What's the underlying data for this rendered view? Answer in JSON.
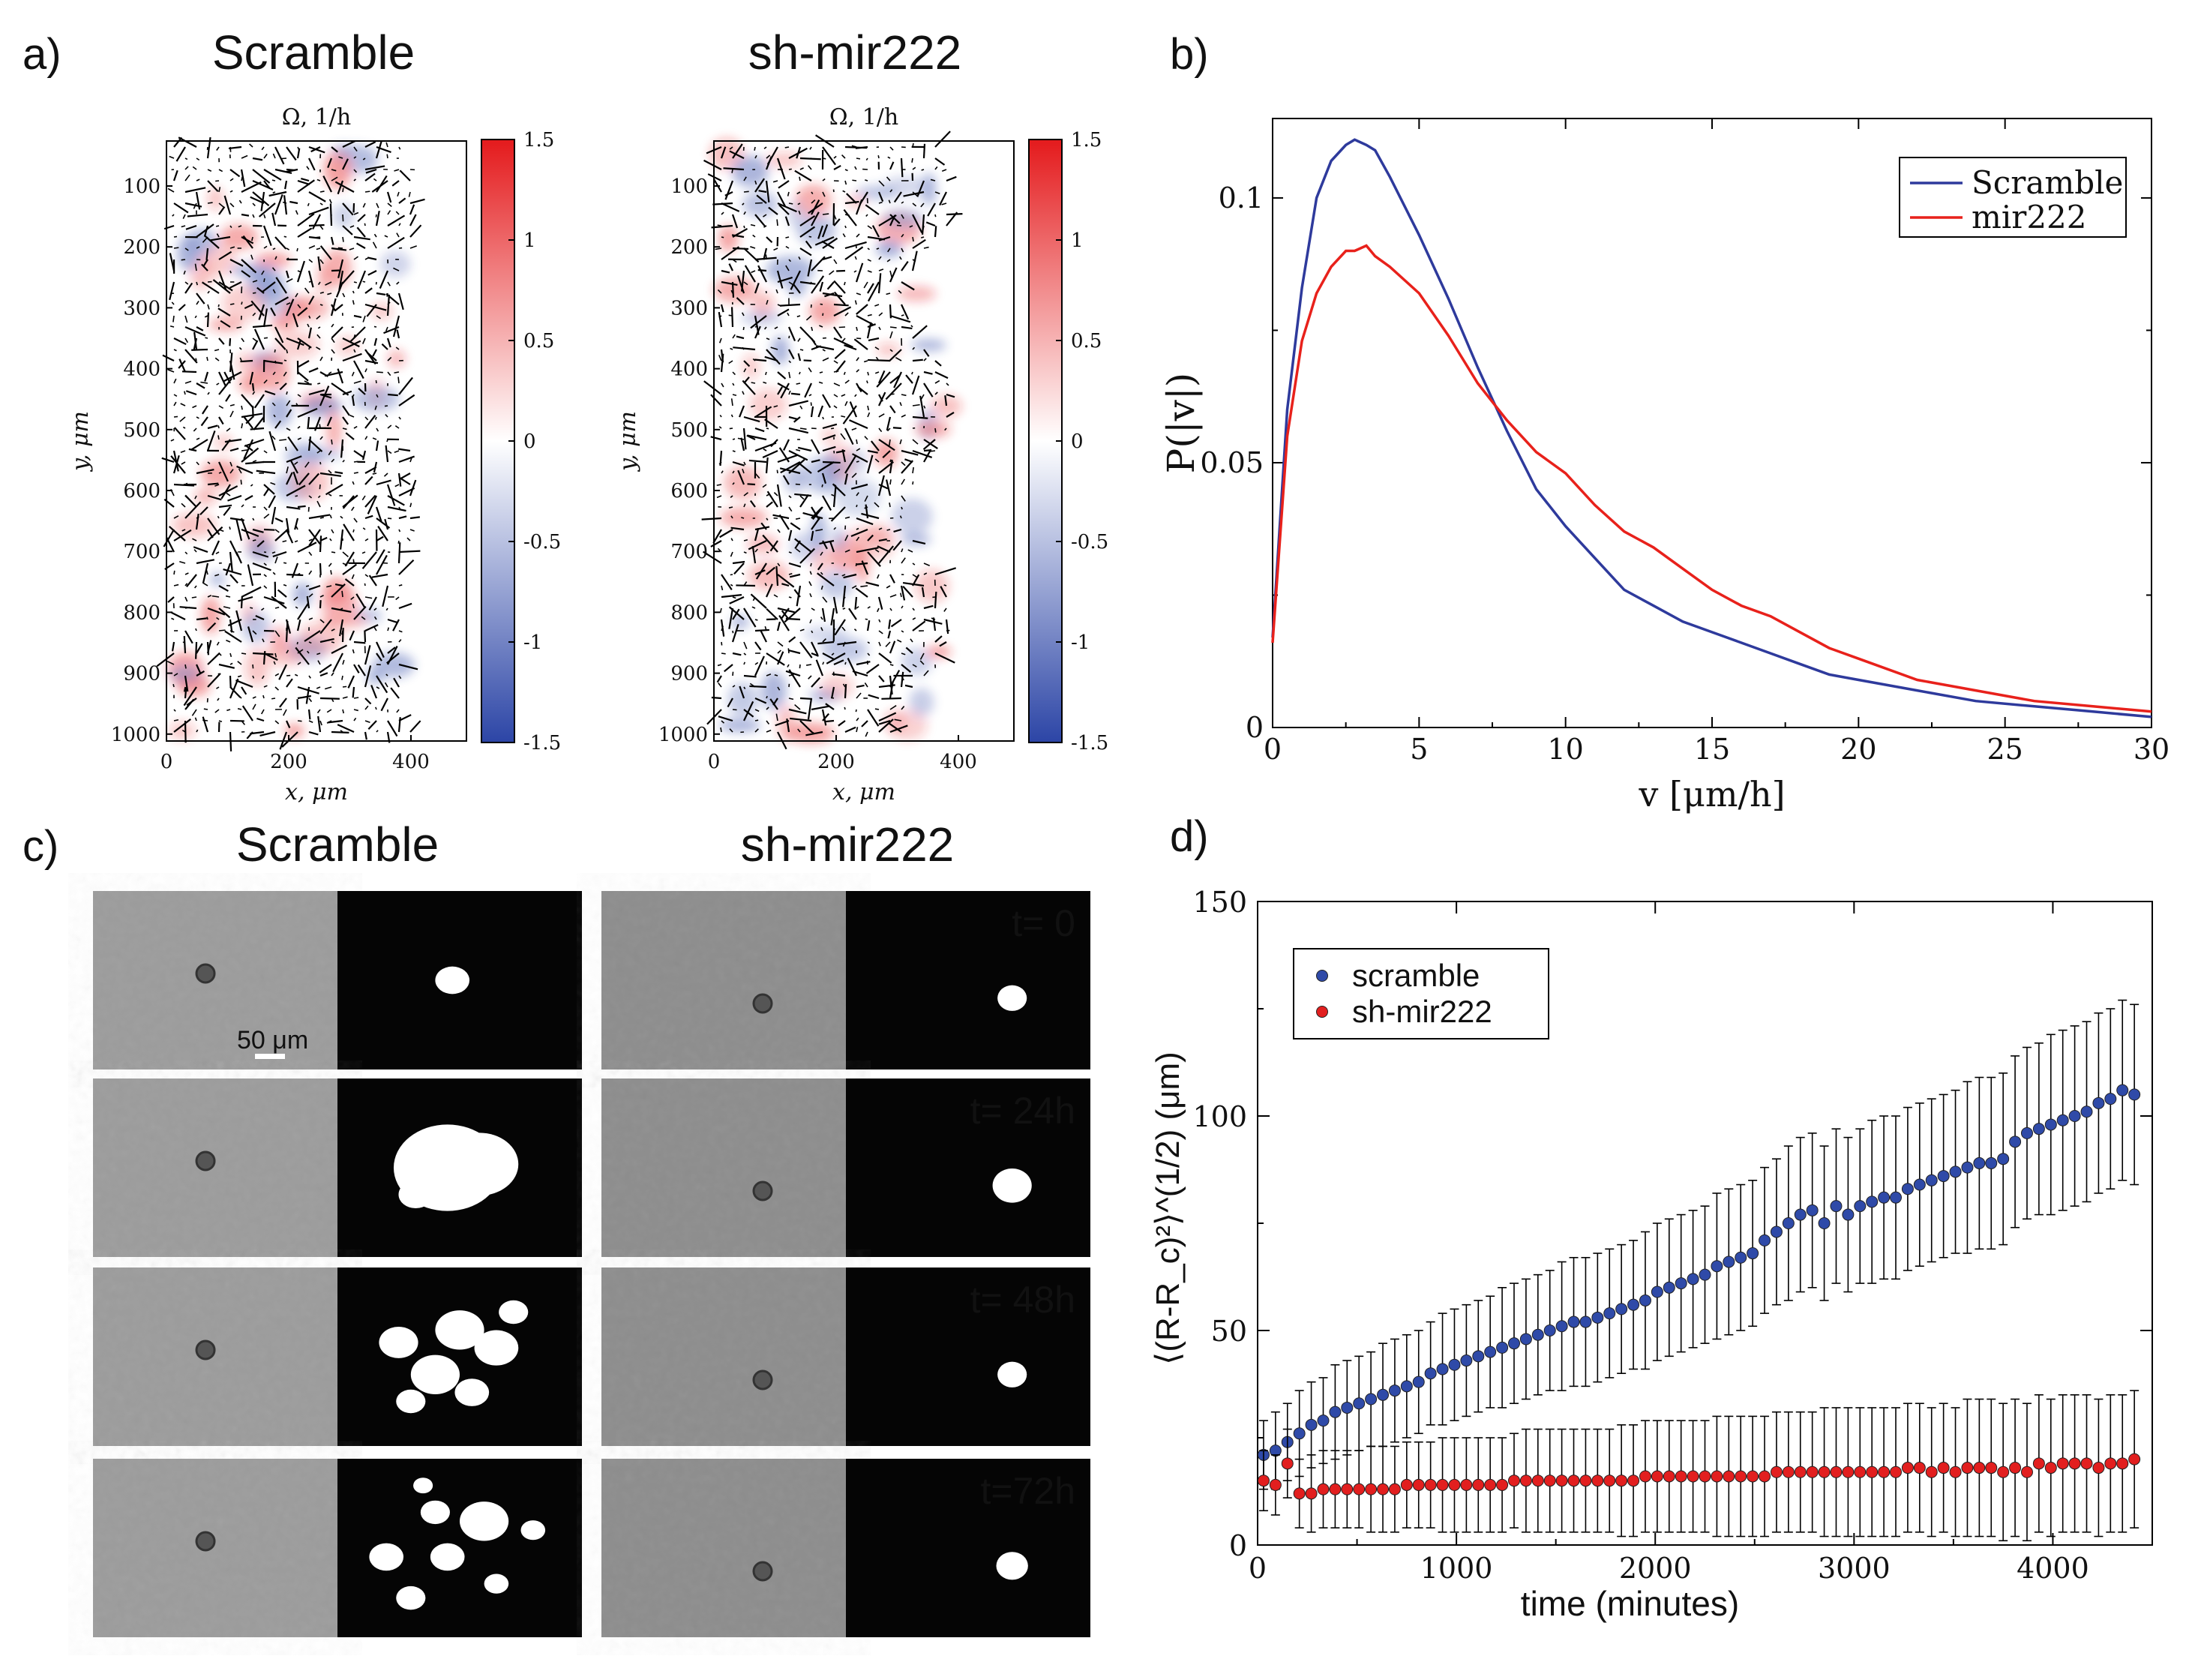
{
  "panels": {
    "a": {
      "letter": "a)",
      "maps": [
        {
          "title": "Scramble",
          "colorbar_label": "Ω, 1/h"
        },
        {
          "title": "sh-mir222",
          "colorbar_label": "Ω, 1/h"
        }
      ],
      "xlabel": "x, μm",
      "ylabel": "y, μm",
      "x_ticks": [
        "0",
        "200",
        "400"
      ],
      "y_ticks": [
        "100",
        "200",
        "300",
        "400",
        "500",
        "600",
        "700",
        "800",
        "900",
        "1000"
      ],
      "colorbar_ticks": [
        "1.5",
        "1",
        "0.5",
        "0",
        "-0.5",
        "-1",
        "-1.5"
      ],
      "colors": {
        "positive": "#e41a1c",
        "negative": "#2c45a6"
      }
    },
    "b": {
      "letter": "b)"
    },
    "c": {
      "letter": "c)",
      "columns": [
        "Scramble",
        "sh-mir222"
      ],
      "time_labels": [
        "t= 0",
        "t= 24h",
        "t= 48h",
        "t=72h"
      ],
      "scale_bar": "50 μm"
    },
    "d": {
      "letter": "d)"
    }
  },
  "chart_data": [
    {
      "panel": "b",
      "type": "line",
      "xlabel": "v [μm/h]",
      "ylabel": "P(|v|)",
      "xlim": [
        0,
        30
      ],
      "ylim": [
        0,
        0.115
      ],
      "x_ticks": [
        "0",
        "5",
        "10",
        "15",
        "20",
        "25",
        "30"
      ],
      "y_ticks": [
        "0",
        "0.05",
        "0.1"
      ],
      "legend_position": "top-right",
      "series": [
        {
          "name": "Scramble",
          "color": "#2e3a9c",
          "x": [
            0,
            0.5,
            1,
            1.5,
            2,
            2.5,
            2.8,
            3.2,
            3.5,
            4,
            5,
            6,
            7,
            8,
            9,
            10,
            11,
            12,
            13,
            14,
            15,
            16,
            17,
            18,
            19,
            20,
            22,
            24,
            26,
            28,
            30
          ],
          "y": [
            0.017,
            0.06,
            0.083,
            0.1,
            0.107,
            0.11,
            0.111,
            0.11,
            0.109,
            0.104,
            0.093,
            0.081,
            0.068,
            0.056,
            0.045,
            0.038,
            0.032,
            0.026,
            0.023,
            0.02,
            0.018,
            0.016,
            0.014,
            0.012,
            0.01,
            0.009,
            0.007,
            0.005,
            0.004,
            0.003,
            0.002
          ]
        },
        {
          "name": "mir222",
          "color": "#e8211b",
          "x": [
            0,
            0.5,
            1,
            1.5,
            2,
            2.5,
            2.8,
            3.2,
            3.5,
            4,
            5,
            6,
            7,
            8,
            9,
            10,
            11,
            12,
            13,
            14,
            15,
            16,
            17,
            18,
            19,
            20,
            22,
            24,
            26,
            28,
            30
          ],
          "y": [
            0.016,
            0.055,
            0.073,
            0.082,
            0.087,
            0.09,
            0.09,
            0.091,
            0.089,
            0.087,
            0.082,
            0.074,
            0.065,
            0.058,
            0.052,
            0.048,
            0.042,
            0.037,
            0.034,
            0.03,
            0.026,
            0.023,
            0.021,
            0.018,
            0.015,
            0.013,
            0.009,
            0.007,
            0.005,
            0.004,
            0.003
          ]
        }
      ]
    },
    {
      "panel": "d",
      "type": "scatter",
      "xlabel": "time (minutes)",
      "ylabel": "⟨(R-R_c)²⟩^(1/2) (μm)",
      "xlim": [
        0,
        4500
      ],
      "ylim": [
        0,
        150
      ],
      "x_ticks": [
        "0",
        "1000",
        "2000",
        "3000",
        "4000"
      ],
      "y_ticks": [
        "0",
        "50",
        "100",
        "150"
      ],
      "legend_position": "top-left",
      "series": [
        {
          "name": "scramble",
          "color": "#2f4aa8",
          "x": [
            30,
            90,
            150,
            210,
            270,
            330,
            390,
            450,
            510,
            570,
            630,
            690,
            750,
            810,
            870,
            930,
            990,
            1050,
            1110,
            1170,
            1230,
            1290,
            1350,
            1410,
            1470,
            1530,
            1590,
            1650,
            1710,
            1770,
            1830,
            1890,
            1950,
            2010,
            2070,
            2130,
            2190,
            2250,
            2310,
            2370,
            2430,
            2490,
            2550,
            2610,
            2670,
            2730,
            2790,
            2850,
            2910,
            2970,
            3030,
            3090,
            3150,
            3210,
            3270,
            3330,
            3390,
            3450,
            3510,
            3570,
            3630,
            3690,
            3750,
            3810,
            3870,
            3930,
            3990,
            4050,
            4110,
            4170,
            4230,
            4290,
            4350,
            4410
          ],
          "y": [
            21,
            22,
            24,
            26,
            28,
            29,
            31,
            32,
            33,
            34,
            35,
            36,
            37,
            38,
            40,
            41,
            42,
            43,
            44,
            45,
            46,
            47,
            48,
            49,
            50,
            51,
            52,
            52,
            53,
            54,
            55,
            56,
            57,
            59,
            60,
            61,
            62,
            63,
            65,
            66,
            67,
            68,
            71,
            73,
            75,
            77,
            78,
            75,
            79,
            77,
            79,
            80,
            81,
            81,
            83,
            84,
            85,
            86,
            87,
            88,
            89,
            89,
            90,
            94,
            96,
            97,
            98,
            99,
            100,
            101,
            103,
            104,
            106,
            105
          ],
          "err": [
            8,
            9,
            9,
            10,
            10,
            10,
            11,
            11,
            11,
            11,
            12,
            12,
            12,
            12,
            12,
            13,
            13,
            13,
            13,
            13,
            14,
            14,
            14,
            14,
            14,
            15,
            15,
            15,
            15,
            15,
            15,
            15,
            16,
            16,
            16,
            16,
            16,
            16,
            17,
            17,
            17,
            17,
            17,
            17,
            18,
            18,
            18,
            18,
            18,
            18,
            18,
            19,
            19,
            19,
            19,
            19,
            19,
            19,
            19,
            20,
            20,
            20,
            20,
            20,
            20,
            20,
            21,
            21,
            21,
            21,
            21,
            21,
            21,
            21
          ]
        },
        {
          "name": "sh-mir222",
          "color": "#e21f1f",
          "x": [
            30,
            90,
            150,
            210,
            270,
            330,
            390,
            450,
            510,
            570,
            630,
            690,
            750,
            810,
            870,
            930,
            990,
            1050,
            1110,
            1170,
            1230,
            1290,
            1350,
            1410,
            1470,
            1530,
            1590,
            1650,
            1710,
            1770,
            1830,
            1890,
            1950,
            2010,
            2070,
            2130,
            2190,
            2250,
            2310,
            2370,
            2430,
            2490,
            2550,
            2610,
            2670,
            2730,
            2790,
            2850,
            2910,
            2970,
            3030,
            3090,
            3150,
            3210,
            3270,
            3330,
            3390,
            3450,
            3510,
            3570,
            3630,
            3690,
            3750,
            3810,
            3870,
            3930,
            3990,
            4050,
            4110,
            4170,
            4230,
            4290,
            4350,
            4410
          ],
          "y": [
            15,
            14,
            19,
            12,
            12,
            13,
            13,
            13,
            13,
            13,
            13,
            13,
            14,
            14,
            14,
            14,
            14,
            14,
            14,
            14,
            14,
            15,
            15,
            15,
            15,
            15,
            15,
            15,
            15,
            15,
            15,
            15,
            16,
            16,
            16,
            16,
            16,
            16,
            16,
            16,
            16,
            16,
            16,
            17,
            17,
            17,
            17,
            17,
            17,
            17,
            17,
            17,
            17,
            17,
            18,
            18,
            17,
            18,
            17,
            18,
            18,
            18,
            17,
            18,
            17,
            19,
            18,
            19,
            19,
            19,
            18,
            19,
            19,
            20
          ],
          "err": [
            7,
            7,
            8,
            8,
            9,
            9,
            9,
            9,
            9,
            10,
            10,
            10,
            10,
            10,
            10,
            11,
            11,
            11,
            11,
            11,
            11,
            11,
            12,
            12,
            12,
            12,
            12,
            12,
            12,
            12,
            13,
            13,
            13,
            13,
            13,
            13,
            13,
            13,
            14,
            14,
            14,
            14,
            14,
            14,
            14,
            14,
            14,
            15,
            15,
            15,
            15,
            15,
            15,
            15,
            15,
            15,
            15,
            15,
            15,
            16,
            16,
            16,
            16,
            16,
            16,
            16,
            16,
            16,
            16,
            16,
            16,
            16,
            16,
            16
          ]
        }
      ]
    }
  ]
}
